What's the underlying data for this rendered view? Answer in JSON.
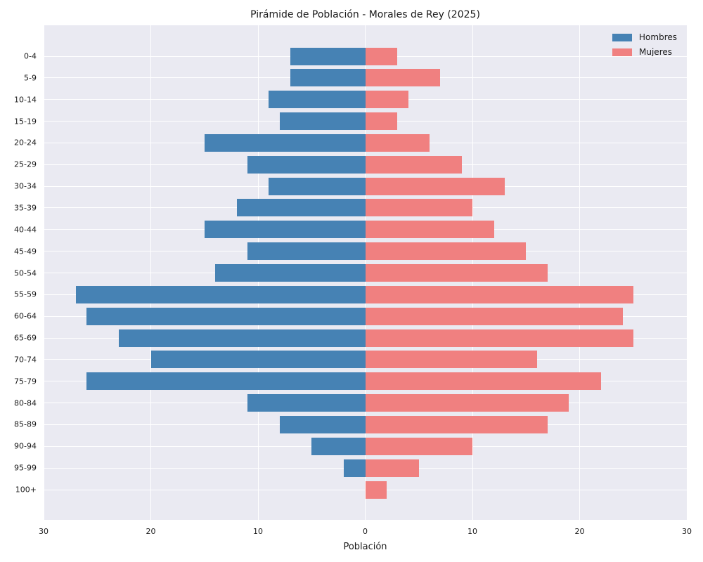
{
  "chart_data": {
    "type": "bar",
    "variant": "population-pyramid",
    "title": "Pirámide de Población - Morales de Rey (2025)",
    "xlabel": "Población",
    "ylabel": "",
    "categories": [
      "0-4",
      "5-9",
      "10-14",
      "15-19",
      "20-24",
      "25-29",
      "30-34",
      "35-39",
      "40-44",
      "45-49",
      "50-54",
      "55-59",
      "60-64",
      "65-69",
      "70-74",
      "75-79",
      "80-84",
      "85-89",
      "90-94",
      "95-99",
      "100+"
    ],
    "series": [
      {
        "name": "Hombres",
        "side": "left",
        "color": "#4682b4",
        "values": [
          7,
          7,
          9,
          8,
          15,
          11,
          9,
          12,
          15,
          11,
          14,
          27,
          26,
          23,
          20,
          26,
          11,
          8,
          5,
          2,
          0
        ]
      },
      {
        "name": "Mujeres",
        "side": "right",
        "color": "#f08080",
        "values": [
          3,
          7,
          4,
          3,
          6,
          9,
          13,
          10,
          12,
          15,
          17,
          25,
          24,
          25,
          16,
          22,
          19,
          17,
          10,
          5,
          2
        ]
      }
    ],
    "xlim": [
      -30,
      30
    ],
    "x_tick_labels": [
      "30",
      "20",
      "10",
      "0",
      "10",
      "20",
      "30"
    ],
    "grid": true,
    "grid_color": "#ffffff",
    "plot_bg": "#eaeaf2",
    "legend_position": "upper-right"
  }
}
